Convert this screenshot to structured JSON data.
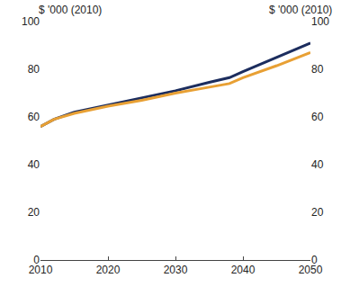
{
  "chart_data": {
    "type": "line",
    "ylabel": "$ '000 (2010)",
    "y2label": "$ '000 (2010)",
    "x": [
      2010,
      2012,
      2015,
      2020,
      2025,
      2030,
      2035,
      2038,
      2040,
      2045,
      2050
    ],
    "series": [
      {
        "color": "#1c2d5e",
        "values": [
          56,
          59,
          62,
          65,
          68,
          71,
          74.5,
          76.5,
          79,
          85,
          91
        ]
      },
      {
        "color": "#e8a034",
        "values": [
          56,
          59,
          61.5,
          64.5,
          67,
          70,
          72.5,
          74,
          76.5,
          81.5,
          87
        ]
      }
    ],
    "xlim": [
      2010,
      2050
    ],
    "xticks": [
      2010,
      2020,
      2030,
      2040,
      2050
    ],
    "ylim": [
      0,
      100
    ],
    "yticks": [
      0,
      20,
      40,
      60,
      80,
      100
    ],
    "y2lim": [
      0,
      100
    ],
    "y2ticks": [
      0,
      20,
      40,
      60,
      80,
      100
    ],
    "grid": false
  }
}
